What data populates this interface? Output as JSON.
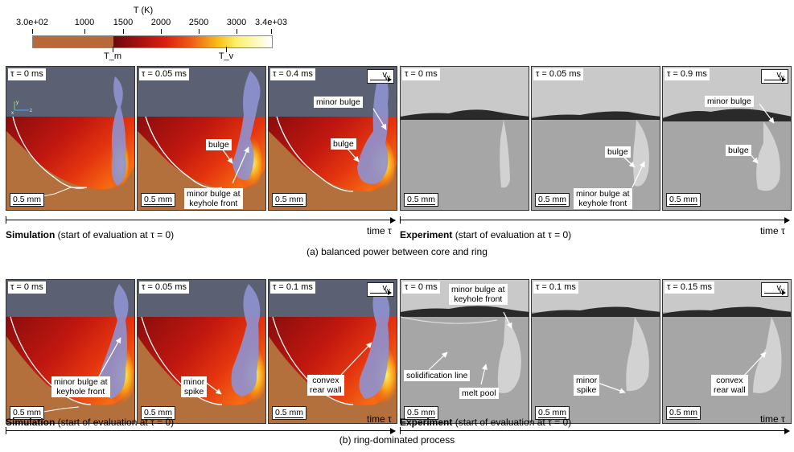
{
  "colorbar": {
    "title": "T (K)",
    "ticks": [
      "3.0e+02",
      "1000",
      "1500",
      "2000",
      "2500",
      "3000",
      "3.4e+03"
    ],
    "markers": [
      "T_m",
      "T_v"
    ]
  },
  "row_a": {
    "sim_panels": [
      {
        "tau": "τ = 0 ms",
        "scale": "0.5 mm"
      },
      {
        "tau": "τ = 0.05 ms",
        "scale": "0.5 mm",
        "labels": [
          "bulge",
          "minor bulge at",
          "keyhole front"
        ]
      },
      {
        "tau": "τ = 0.4 ms",
        "scale": "0.5 mm",
        "vw": "v",
        "vw_sub": "W",
        "labels": [
          "minor bulge",
          "bulge"
        ]
      }
    ],
    "exp_panels": [
      {
        "tau": "τ = 0 ms",
        "scale": "0.5 mm"
      },
      {
        "tau": "τ = 0.05 ms",
        "scale": "0.5 mm",
        "labels": [
          "bulge",
          "minor bulge at",
          "keyhole  front"
        ]
      },
      {
        "tau": "τ = 0.9 ms",
        "scale": "0.5 mm",
        "vw": "v",
        "vw_sub": "W",
        "labels": [
          "minor bulge",
          "bulge"
        ]
      }
    ],
    "sim_label_bold": "Simulation",
    "sim_label_rest": " (start of evaluation at τ = 0)",
    "exp_label_bold": "Experiment",
    "exp_label_rest": " (start of evaluation at τ = 0)",
    "time_label": "time τ",
    "caption": "(a) balanced power between core and ring"
  },
  "row_b": {
    "sim_panels": [
      {
        "tau": "τ = 0 ms",
        "scale": "0.5 mm",
        "labels": [
          "minor bulge at",
          "keyhole  front"
        ]
      },
      {
        "tau": "τ = 0.05 ms",
        "scale": "0.5 mm",
        "labels": [
          "minor",
          "spike"
        ]
      },
      {
        "tau": "τ = 0.1 ms",
        "scale": "0.5 mm",
        "vw": "v",
        "vw_sub": "W",
        "labels": [
          "convex",
          "rear wall"
        ]
      }
    ],
    "exp_panels": [
      {
        "tau": "τ = 0 ms",
        "scale": "0.5 mm",
        "labels": [
          "minor bulge at",
          "keyhole  front",
          "solidification line",
          "melt pool"
        ]
      },
      {
        "tau": "τ = 0.1 ms",
        "scale": "0.5 mm",
        "labels": [
          "minor",
          "spike"
        ]
      },
      {
        "tau": "τ = 0.15 ms",
        "scale": "0.5 mm",
        "vw": "v",
        "vw_sub": "W",
        "labels": [
          "convex",
          "rear wall"
        ]
      }
    ],
    "sim_label_bold": "Simulation",
    "sim_label_rest": " (start of evaluation at τ = 0)",
    "exp_label_bold": "Experiment",
    "exp_label_rest": " (start of evaluation at τ = 0)",
    "time_label": "time τ",
    "caption": "(b) ring-dominated process"
  },
  "axes_triad": {
    "y": "y",
    "x": "x",
    "z": "z"
  }
}
